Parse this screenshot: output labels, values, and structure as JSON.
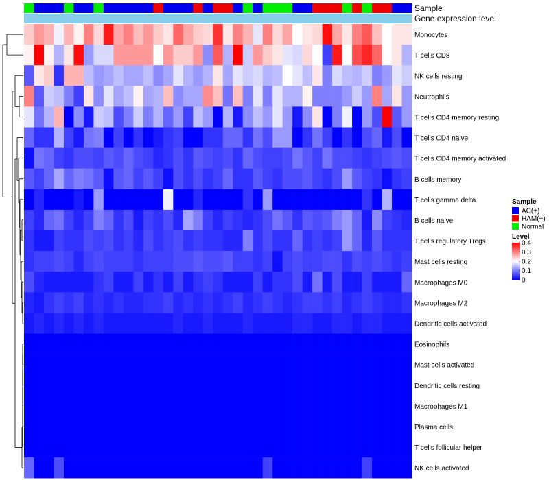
{
  "chart_data": {
    "type": "heatmap",
    "annotation_titles": [
      "Sample",
      "Gene expression level"
    ],
    "legend_sample": {
      "title": "Sample",
      "entries": [
        {
          "label": "AC(+)",
          "color": "#0000ee"
        },
        {
          "label": "HAM(+)",
          "color": "#ee0000"
        },
        {
          "label": "Normal",
          "color": "#00ee00"
        }
      ]
    },
    "legend_level": {
      "title": "Level",
      "tick_labels": [
        "0.4",
        "0.3",
        "0.2",
        "0.1",
        "0"
      ],
      "ticks": [
        0.4,
        0.3,
        0.2,
        0.1,
        0.0
      ],
      "range": [
        0,
        0.4
      ]
    },
    "colors": {
      "low": "#0000ff",
      "mid": "#ffffff",
      "high": "#ff0000",
      "ac": "#0000ee",
      "ham": "#ee0000",
      "normal": "#00ee00",
      "expression_bar": "#87ceeb"
    },
    "sample_groups": [
      "N",
      "A",
      "A",
      "A",
      "N",
      "A",
      "A",
      "N",
      "A",
      "A",
      "A",
      "A",
      "A",
      "H",
      "A",
      "A",
      "A",
      "H",
      "A",
      "H",
      "H",
      "A",
      "N",
      "A",
      "N",
      "N",
      "N",
      "A",
      "A",
      "H",
      "H",
      "H",
      "N",
      "H",
      "N",
      "H",
      "H",
      "A",
      "A"
    ],
    "rows": [
      "Monocytes",
      "T cells CD8",
      "NK cells resting",
      "Neutrophils",
      "T cells CD4 memory resting",
      "T cells CD4 naive",
      "T cells CD4 memory activated",
      "B cells memory",
      "T cells gamma delta",
      "B cells naive",
      "T cells regulatory  Tregs",
      "Mast cells resting",
      "Macrophages M0",
      "Macrophages M2",
      "Dendritic cells activated",
      "Eosinophils",
      "Mast cells activated",
      "Dendritic cells resting",
      "Macrophages M1",
      "Plasma cells",
      "T cells follicular helper",
      "NK cells activated"
    ],
    "values": [
      [
        0.24,
        0.28,
        0.26,
        0.19,
        0.26,
        0.21,
        0.3,
        0.23,
        0.38,
        0.27,
        0.3,
        0.25,
        0.28,
        0.24,
        0.22,
        0.32,
        0.27,
        0.24,
        0.23,
        0.36,
        0.22,
        0.3,
        0.26,
        0.18,
        0.3,
        0.23,
        0.27,
        0.2,
        0.22,
        0.23,
        0.39,
        0.27,
        0.22,
        0.3,
        0.33,
        0.25,
        0.2,
        0.22,
        0.22
      ],
      [
        0.21,
        0.4,
        0.21,
        0.14,
        0.22,
        0.39,
        0.12,
        0.17,
        0.17,
        0.28,
        0.28,
        0.28,
        0.28,
        0.2,
        0.28,
        0.24,
        0.24,
        0.28,
        0.11,
        0.33,
        0.14,
        0.4,
        0.16,
        0.28,
        0.24,
        0.22,
        0.18,
        0.17,
        0.23,
        0.2,
        0.05,
        0.38,
        0.2,
        0.34,
        0.37,
        0.32,
        0.2,
        0.22,
        0.14
      ],
      [
        0.07,
        0.22,
        0.24,
        0.04,
        0.26,
        0.26,
        0.15,
        0.12,
        0.13,
        0.15,
        0.13,
        0.13,
        0.15,
        0.11,
        0.13,
        0.18,
        0.14,
        0.12,
        0.14,
        0.22,
        0.13,
        0.18,
        0.16,
        0.17,
        0.14,
        0.15,
        0.2,
        0.18,
        0.15,
        0.22,
        0.1,
        0.17,
        0.15,
        0.14,
        0.16,
        0.1,
        0.12,
        0.18,
        0.16
      ],
      [
        0.3,
        0.07,
        0.16,
        0.15,
        0.1,
        0.05,
        0.22,
        0.11,
        0.18,
        0.13,
        0.15,
        0.21,
        0.13,
        0.14,
        0.25,
        0.11,
        0.13,
        0.13,
        0.29,
        0.25,
        0.09,
        0.25,
        0.1,
        0.18,
        0.1,
        0.18,
        0.14,
        0.14,
        0.21,
        0.1,
        0.1,
        0.1,
        0.12,
        0.16,
        0.12,
        0.3,
        0.13,
        0.22,
        0.12
      ],
      [
        0.18,
        0.09,
        0.14,
        0.26,
        0.0,
        0.11,
        0.02,
        0.16,
        0.15,
        0.06,
        0.1,
        0.16,
        0.1,
        0.14,
        0.08,
        0.12,
        0.05,
        0.15,
        0.12,
        0.0,
        0.14,
        0.02,
        0.11,
        0.15,
        0.12,
        0.18,
        0.12,
        0.02,
        0.11,
        0.22,
        0.0,
        0.1,
        0.19,
        0.0,
        0.12,
        0.06,
        0.42,
        0.07,
        0.12
      ],
      [
        0.08,
        0.04,
        0.04,
        0.14,
        0.05,
        0.02,
        0.09,
        0.1,
        0.0,
        0.05,
        0.0,
        0.04,
        0.0,
        0.02,
        0.04,
        0.05,
        0.0,
        0.0,
        0.04,
        0.04,
        0.08,
        0.08,
        0.04,
        0.09,
        0.06,
        0.12,
        0.12,
        0.0,
        0.04,
        0.09,
        0.05,
        0.0,
        0.04,
        0.0,
        0.06,
        0.08,
        0.02,
        0.06,
        0.0
      ],
      [
        0.01,
        0.09,
        0.08,
        0.05,
        0.04,
        0.06,
        0.06,
        0.05,
        0.07,
        0.06,
        0.08,
        0.06,
        0.05,
        0.03,
        0.04,
        0.06,
        0.04,
        0.07,
        0.06,
        0.05,
        0.06,
        0.04,
        0.08,
        0.06,
        0.05,
        0.05,
        0.06,
        0.09,
        0.07,
        0.05,
        0.09,
        0.06,
        0.06,
        0.05,
        0.04,
        0.05,
        0.06,
        0.07,
        0.06
      ],
      [
        0.07,
        0.05,
        0.08,
        0.13,
        0.08,
        0.1,
        0.09,
        0.07,
        0.01,
        0.07,
        0.08,
        0.05,
        0.07,
        0.05,
        0.01,
        0.06,
        0.04,
        0.06,
        0.04,
        0.05,
        0.08,
        0.04,
        0.04,
        0.07,
        0.05,
        0.04,
        0.06,
        0.06,
        0.07,
        0.05,
        0.04,
        0.06,
        0.12,
        0.07,
        0.05,
        0.04,
        0.01,
        0.04,
        0.05
      ],
      [
        0.0,
        0.03,
        0.0,
        0.0,
        0.0,
        0.02,
        0.0,
        0.12,
        0.0,
        0.0,
        0.0,
        0.0,
        0.0,
        0.0,
        0.19,
        0.0,
        0.0,
        0.03,
        0.0,
        0.0,
        0.0,
        0.0,
        0.04,
        0.0,
        0.12,
        0.0,
        0.0,
        0.0,
        0.0,
        0.0,
        0.0,
        0.0,
        0.0,
        0.0,
        0.04,
        0.0,
        0.14,
        0.0,
        0.0
      ],
      [
        0.05,
        0.03,
        0.08,
        0.09,
        0.05,
        0.03,
        0.05,
        0.1,
        0.08,
        0.04,
        0.06,
        0.02,
        0.05,
        0.04,
        0.06,
        0.03,
        0.13,
        0.1,
        0.05,
        0.03,
        0.05,
        0.04,
        0.03,
        0.04,
        0.06,
        0.09,
        0.07,
        0.04,
        0.07,
        0.06,
        0.07,
        0.1,
        0.12,
        0.08,
        0.02,
        0.11,
        0.05,
        0.04,
        0.03
      ],
      [
        0.04,
        0.02,
        0.02,
        0.05,
        0.04,
        0.04,
        0.06,
        0.05,
        0.06,
        0.04,
        0.05,
        0.03,
        0.06,
        0.04,
        0.05,
        0.06,
        0.04,
        0.05,
        0.04,
        0.04,
        0.03,
        0.03,
        0.1,
        0.04,
        0.06,
        0.04,
        0.04,
        0.08,
        0.04,
        0.05,
        0.04,
        0.05,
        0.12,
        0.08,
        0.03,
        0.07,
        0.04,
        0.04,
        0.04
      ],
      [
        0.04,
        0.05,
        0.05,
        0.06,
        0.05,
        0.03,
        0.05,
        0.06,
        0.05,
        0.05,
        0.05,
        0.04,
        0.05,
        0.05,
        0.05,
        0.06,
        0.06,
        0.07,
        0.06,
        0.06,
        0.07,
        0.05,
        0.05,
        0.04,
        0.05,
        0.01,
        0.05,
        0.06,
        0.05,
        0.05,
        0.06,
        0.06,
        0.04,
        0.06,
        0.05,
        0.06,
        0.05,
        0.04,
        0.05
      ],
      [
        0.06,
        0.03,
        0.02,
        0.02,
        0.02,
        0.02,
        0.02,
        0.04,
        0.05,
        0.02,
        0.02,
        0.05,
        0.02,
        0.04,
        0.02,
        0.05,
        0.02,
        0.04,
        0.05,
        0.04,
        0.02,
        0.02,
        0.02,
        0.05,
        0.02,
        0.04,
        0.04,
        0.06,
        0.02,
        0.09,
        0.02,
        0.06,
        0.02,
        0.02,
        0.05,
        0.02,
        0.02,
        0.02,
        0.08
      ],
      [
        0.03,
        0.02,
        0.04,
        0.05,
        0.04,
        0.05,
        0.03,
        0.04,
        0.03,
        0.04,
        0.03,
        0.03,
        0.04,
        0.04,
        0.05,
        0.03,
        0.04,
        0.03,
        0.04,
        0.03,
        0.04,
        0.05,
        0.03,
        0.04,
        0.05,
        0.04,
        0.03,
        0.04,
        0.05,
        0.05,
        0.04,
        0.05,
        0.03,
        0.04,
        0.05,
        0.04,
        0.03,
        0.03,
        0.04
      ],
      [
        0.02,
        0.03,
        0.02,
        0.03,
        0.02,
        0.03,
        0.02,
        0.03,
        0.02,
        0.02,
        0.02,
        0.02,
        0.02,
        0.02,
        0.02,
        0.03,
        0.02,
        0.02,
        0.03,
        0.02,
        0.02,
        0.02,
        0.03,
        0.02,
        0.02,
        0.02,
        0.02,
        0.03,
        0.03,
        0.02,
        0.02,
        0.03,
        0.03,
        0.02,
        0.03,
        0.03,
        0.02,
        0.02,
        0.02
      ],
      [
        0.0,
        0.0,
        0.0,
        0.0,
        0.0,
        0.0,
        0.0,
        0.0,
        0.0,
        0.0,
        0.0,
        0.0,
        0.0,
        0.0,
        0.0,
        0.0,
        0.0,
        0.0,
        0.0,
        0.0,
        0.0,
        0.0,
        0.0,
        0.0,
        0.0,
        0.0,
        0.0,
        0.0,
        0.0,
        0.0,
        0.0,
        0.0,
        0.0,
        0.0,
        0.0,
        0.0,
        0.0,
        0.0,
        0.0
      ],
      [
        0.0,
        0.0,
        0.0,
        0.0,
        0.0,
        0.0,
        0.0,
        0.0,
        0.0,
        0.0,
        0.0,
        0.0,
        0.0,
        0.0,
        0.0,
        0.0,
        0.0,
        0.0,
        0.0,
        0.0,
        0.0,
        0.0,
        0.0,
        0.0,
        0.0,
        0.0,
        0.0,
        0.0,
        0.0,
        0.0,
        0.0,
        0.0,
        0.0,
        0.0,
        0.0,
        0.0,
        0.0,
        0.0,
        0.0
      ],
      [
        0.0,
        0.0,
        0.0,
        0.0,
        0.0,
        0.0,
        0.0,
        0.0,
        0.0,
        0.0,
        0.0,
        0.0,
        0.0,
        0.0,
        0.0,
        0.0,
        0.0,
        0.0,
        0.0,
        0.0,
        0.0,
        0.0,
        0.0,
        0.0,
        0.0,
        0.0,
        0.0,
        0.0,
        0.0,
        0.0,
        0.0,
        0.0,
        0.0,
        0.0,
        0.0,
        0.0,
        0.0,
        0.0,
        0.0
      ],
      [
        0.0,
        0.0,
        0.0,
        0.0,
        0.0,
        0.0,
        0.0,
        0.0,
        0.0,
        0.0,
        0.0,
        0.0,
        0.0,
        0.0,
        0.0,
        0.0,
        0.0,
        0.0,
        0.0,
        0.0,
        0.0,
        0.0,
        0.0,
        0.0,
        0.0,
        0.0,
        0.0,
        0.0,
        0.0,
        0.0,
        0.0,
        0.0,
        0.0,
        0.0,
        0.0,
        0.0,
        0.0,
        0.0,
        0.0
      ],
      [
        0.0,
        0.0,
        0.0,
        0.0,
        0.0,
        0.0,
        0.0,
        0.0,
        0.0,
        0.0,
        0.0,
        0.0,
        0.0,
        0.0,
        0.0,
        0.0,
        0.0,
        0.0,
        0.0,
        0.0,
        0.0,
        0.0,
        0.0,
        0.0,
        0.0,
        0.0,
        0.0,
        0.0,
        0.0,
        0.0,
        0.0,
        0.0,
        0.0,
        0.0,
        0.0,
        0.0,
        0.0,
        0.0,
        0.0
      ],
      [
        0.0,
        0.0,
        0.0,
        0.0,
        0.0,
        0.0,
        0.0,
        0.0,
        0.0,
        0.0,
        0.0,
        0.0,
        0.0,
        0.0,
        0.0,
        0.0,
        0.0,
        0.0,
        0.0,
        0.0,
        0.0,
        0.0,
        0.0,
        0.0,
        0.0,
        0.0,
        0.0,
        0.0,
        0.0,
        0.0,
        0.0,
        0.0,
        0.0,
        0.0,
        0.0,
        0.0,
        0.0,
        0.0,
        0.0
      ],
      [
        0.08,
        0.0,
        0.0,
        0.06,
        0.0,
        0.0,
        0.0,
        0.0,
        0.0,
        0.0,
        0.0,
        0.0,
        0.0,
        0.0,
        0.0,
        0.0,
        0.0,
        0.0,
        0.0,
        0.0,
        0.0,
        0.0,
        0.0,
        0.0,
        0.05,
        0.0,
        0.0,
        0.0,
        0.0,
        0.0,
        0.0,
        0.0,
        0.0,
        0.0,
        0.05,
        0.0,
        0.0,
        0.0,
        0.0
      ]
    ]
  }
}
